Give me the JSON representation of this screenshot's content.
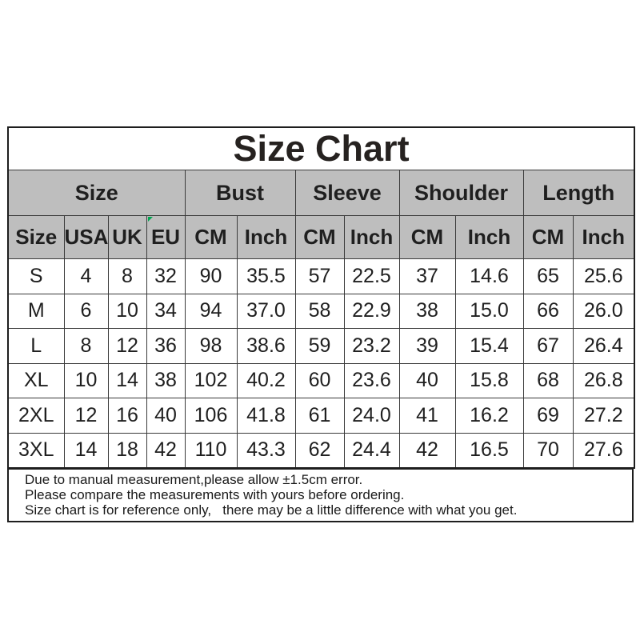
{
  "title": "Size Chart",
  "colors": {
    "header_background": "#bebebe",
    "grid_border": "#3a3a3a",
    "outer_border": "#1e1e1e",
    "text": "#1f1f1f",
    "eu_corner_marker_green": "#00a651"
  },
  "chart_data": {
    "type": "table",
    "title": "Size Chart",
    "column_groups": [
      {
        "label": "Size",
        "span": 4
      },
      {
        "label": "Bust",
        "span": 2
      },
      {
        "label": "Sleeve",
        "span": 2
      },
      {
        "label": "Shoulder",
        "span": 2
      },
      {
        "label": "Length",
        "span": 2
      }
    ],
    "columns": [
      "Size",
      "USA",
      "UK",
      "EU",
      "CM",
      "Inch",
      "CM",
      "Inch",
      "CM",
      "Inch",
      "CM",
      "Inch"
    ],
    "rows": [
      [
        "S",
        "4",
        "8",
        "32",
        "90",
        "35.5",
        "57",
        "22.5",
        "37",
        "14.6",
        "65",
        "25.6"
      ],
      [
        "M",
        "6",
        "10",
        "34",
        "94",
        "37.0",
        "58",
        "22.9",
        "38",
        "15.0",
        "66",
        "26.0"
      ],
      [
        "L",
        "8",
        "12",
        "36",
        "98",
        "38.6",
        "59",
        "23.2",
        "39",
        "15.4",
        "67",
        "26.4"
      ],
      [
        "XL",
        "10",
        "14",
        "38",
        "102",
        "40.2",
        "60",
        "23.6",
        "40",
        "15.8",
        "68",
        "26.8"
      ],
      [
        "2XL",
        "12",
        "16",
        "40",
        "106",
        "41.8",
        "61",
        "24.0",
        "41",
        "16.2",
        "69",
        "27.2"
      ],
      [
        "3XL",
        "14",
        "18",
        "42",
        "110",
        "43.3",
        "62",
        "24.4",
        "42",
        "16.5",
        "70",
        "27.6"
      ]
    ],
    "marker_column_index": 3
  },
  "notes": [
    "Due to manual measurement,please allow ±1.5cm error.",
    "Please compare the measurements with yours before ordering.",
    "Size chart is for reference only,   there may be a little difference with what you get."
  ]
}
